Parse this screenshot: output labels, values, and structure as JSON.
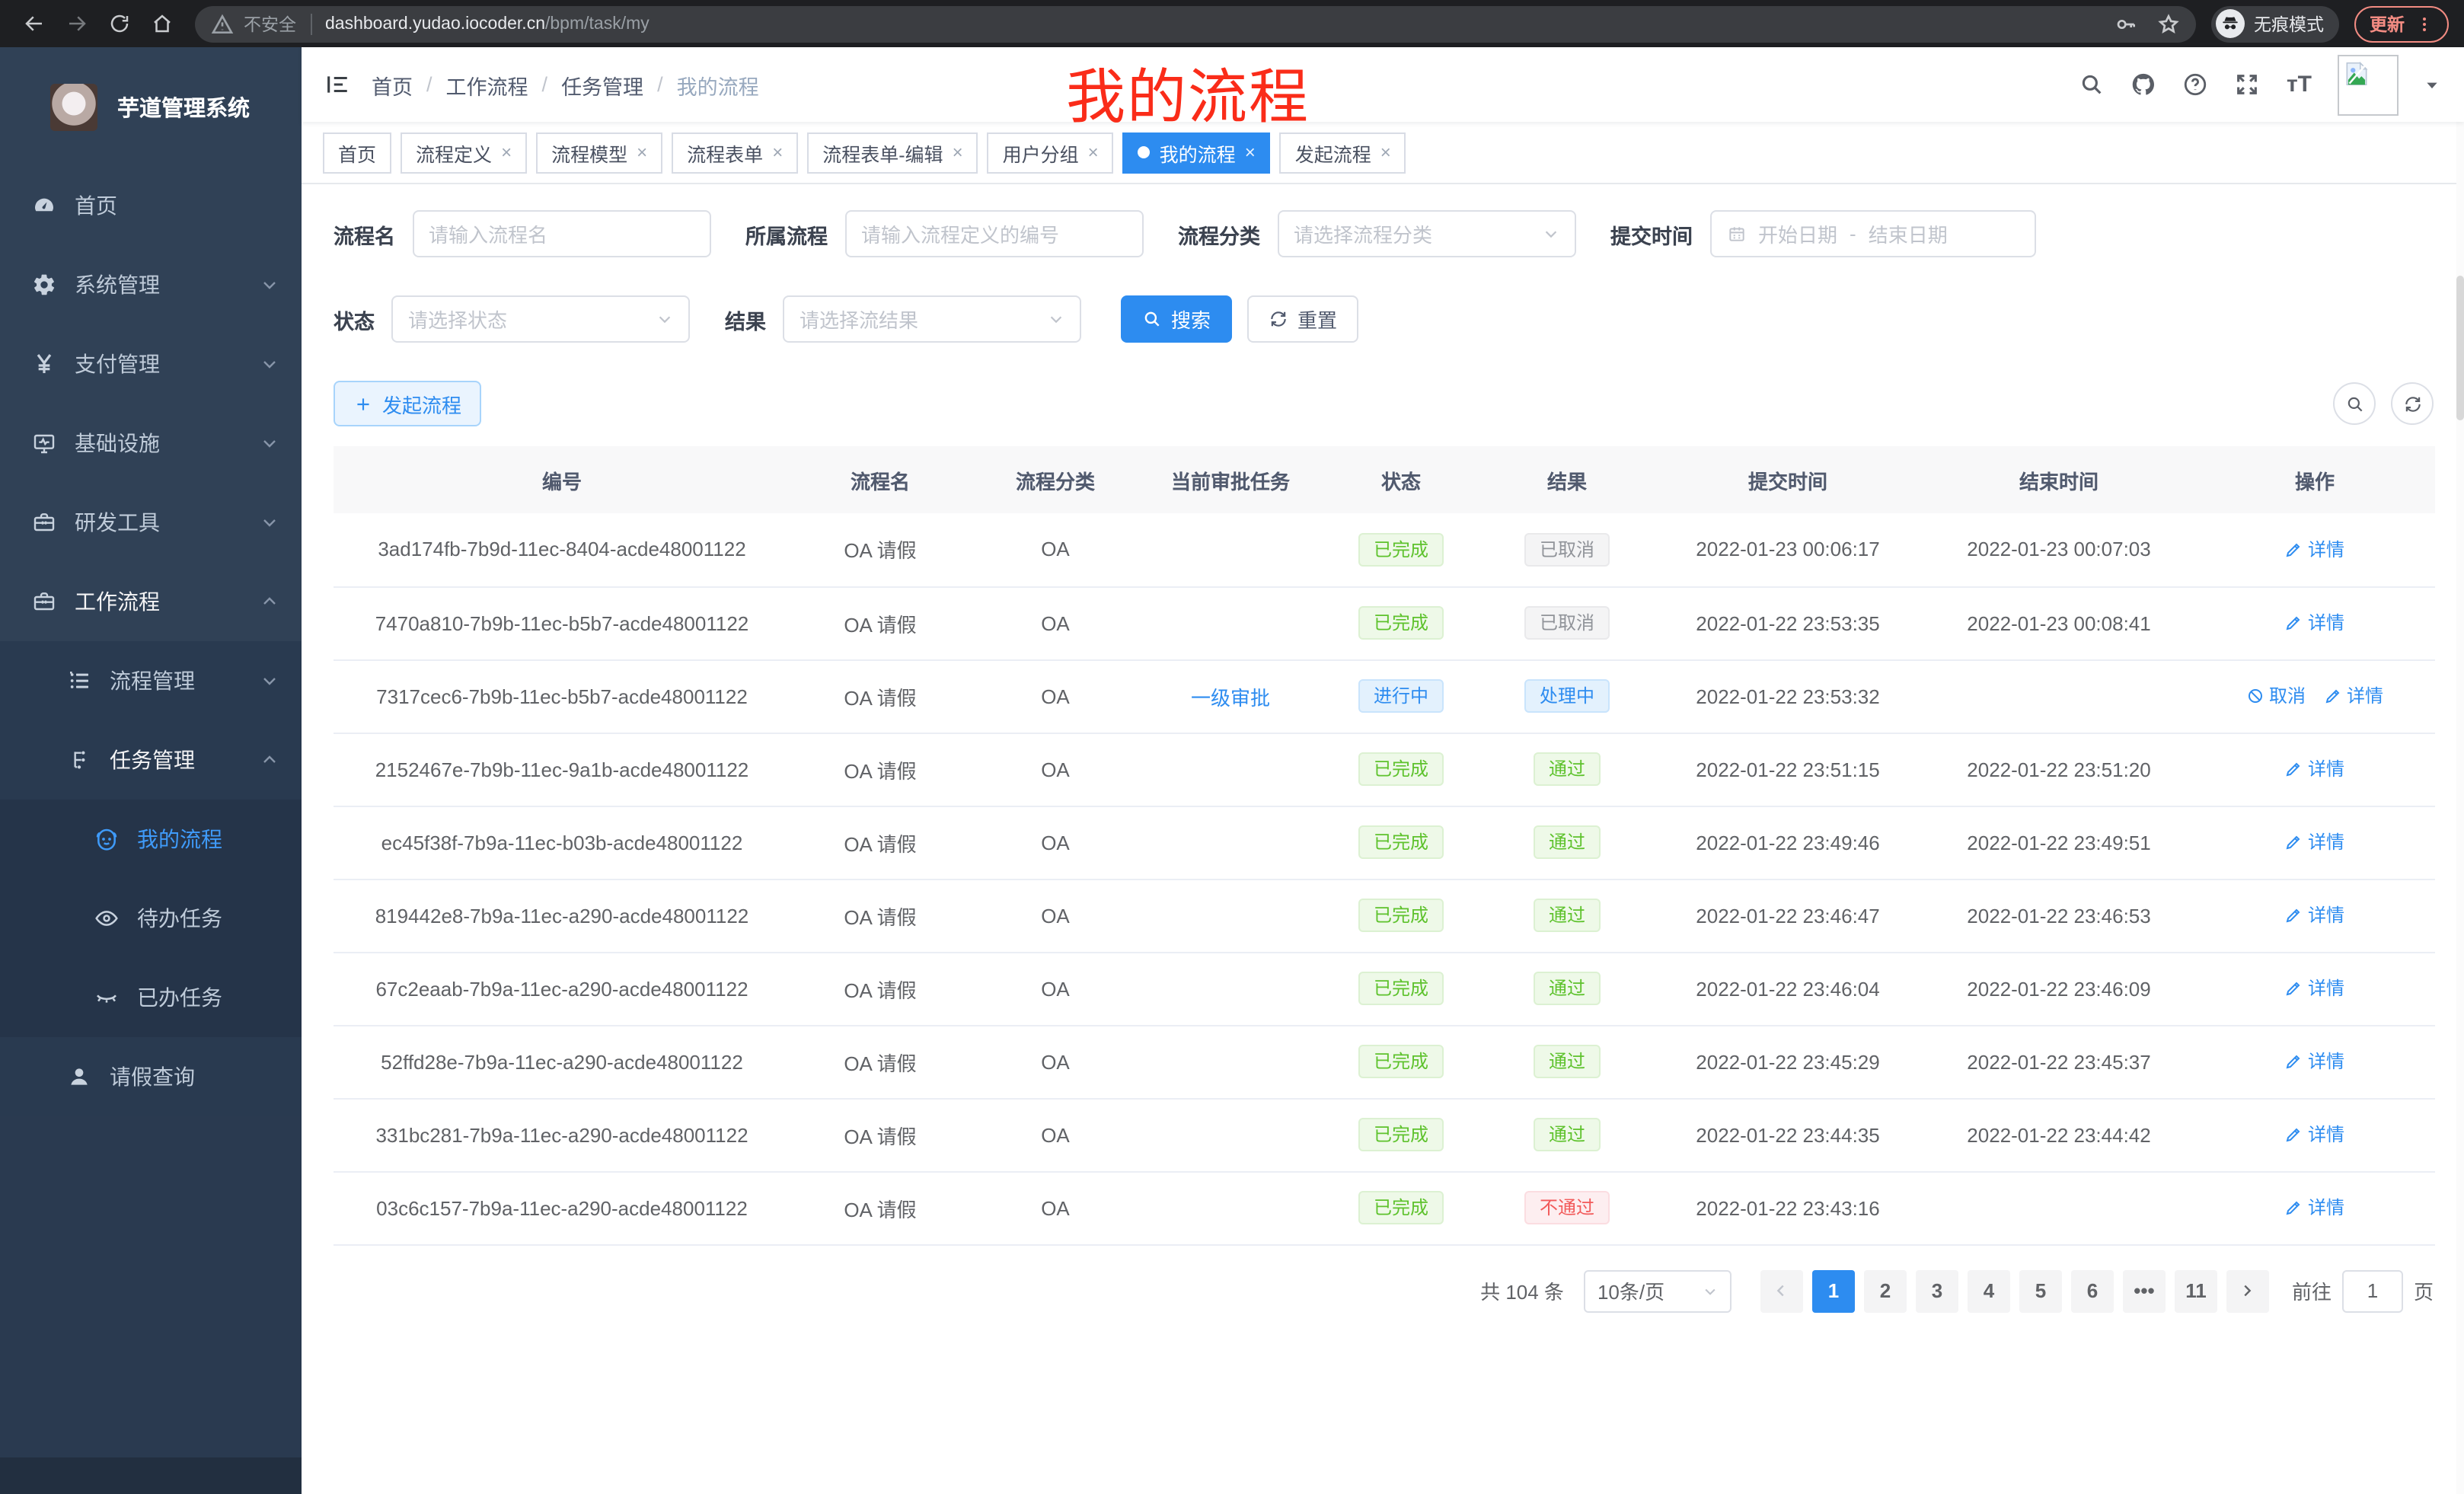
{
  "browser": {
    "security_label": "不安全",
    "url_host": "dashboard.yudao.iocoder.cn",
    "url_path": "/bpm/task/my",
    "incognito_label": "无痕模式",
    "update_label": "更新"
  },
  "sidebar": {
    "app_title": "芋道管理系统",
    "menu": [
      {
        "label": "首页",
        "icon": "dashboard-icon",
        "level": 1
      },
      {
        "label": "系统管理",
        "icon": "gear-icon",
        "level": 1,
        "chevron": "down"
      },
      {
        "label": "支付管理",
        "icon": "yen-icon",
        "level": 1,
        "chevron": "down"
      },
      {
        "label": "基础设施",
        "icon": "monitor-icon",
        "level": 1,
        "chevron": "down"
      },
      {
        "label": "研发工具",
        "icon": "toolbox-icon",
        "level": 1,
        "chevron": "down"
      },
      {
        "label": "工作流程",
        "icon": "briefcase-icon",
        "level": 1,
        "chevron": "up",
        "open": true
      },
      {
        "label": "流程管理",
        "icon": "list-icon",
        "level": 2,
        "chevron": "down"
      },
      {
        "label": "任务管理",
        "icon": "flow-icon",
        "level": 2,
        "chevron": "up",
        "open": true
      },
      {
        "label": "我的流程",
        "icon": "robot-icon",
        "level": 3,
        "active": true
      },
      {
        "label": "待办任务",
        "icon": "eye-icon",
        "level": 3
      },
      {
        "label": "已办任务",
        "icon": "eye-closed-icon",
        "level": 3
      },
      {
        "label": "请假查询",
        "icon": "user-icon",
        "level": 2
      }
    ]
  },
  "header": {
    "breadcrumb": [
      "首页",
      "工作流程",
      "任务管理",
      "我的流程"
    ],
    "annotation": "我的流程"
  },
  "tabs": [
    {
      "label": "首页",
      "closable": false,
      "active": false
    },
    {
      "label": "流程定义",
      "closable": true,
      "active": false
    },
    {
      "label": "流程模型",
      "closable": true,
      "active": false
    },
    {
      "label": "流程表单",
      "closable": true,
      "active": false
    },
    {
      "label": "流程表单-编辑",
      "closable": true,
      "active": false
    },
    {
      "label": "用户分组",
      "closable": true,
      "active": false
    },
    {
      "label": "我的流程",
      "closable": true,
      "active": true
    },
    {
      "label": "发起流程",
      "closable": true,
      "active": false
    }
  ],
  "filters": {
    "rows": [
      [
        {
          "label": "流程名",
          "type": "input",
          "placeholder": "请输入流程名"
        },
        {
          "label": "所属流程",
          "type": "input",
          "placeholder": "请输入流程定义的编号"
        },
        {
          "label": "流程分类",
          "type": "select",
          "placeholder": "请选择流程分类"
        },
        {
          "label": "提交时间",
          "type": "daterange",
          "start_placeholder": "开始日期",
          "separator": "-",
          "end_placeholder": "结束日期"
        }
      ],
      [
        {
          "label": "状态",
          "type": "select",
          "placeholder": "请选择状态"
        },
        {
          "label": "结果",
          "type": "select",
          "placeholder": "请选择流结果"
        }
      ]
    ],
    "search_label": "搜索",
    "reset_label": "重置"
  },
  "toolbar": {
    "create_label": "发起流程"
  },
  "table": {
    "columns": [
      "编号",
      "流程名",
      "流程分类",
      "当前审批任务",
      "状态",
      "结果",
      "提交时间",
      "结束时间",
      "操作"
    ],
    "rows": [
      {
        "id": "3ad174fb-7b9d-11ec-8404-acde48001122",
        "name": "OA 请假",
        "category": "OA",
        "task": "",
        "status": "已完成",
        "status_type": "success",
        "result": "已取消",
        "result_type": "info",
        "submit_time": "2022-01-23 00:06:17",
        "end_time": "2022-01-23 00:07:03",
        "actions": [
          {
            "label": "详情",
            "icon": "edit-icon"
          }
        ]
      },
      {
        "id": "7470a810-7b9b-11ec-b5b7-acde48001122",
        "name": "OA 请假",
        "category": "OA",
        "task": "",
        "status": "已完成",
        "status_type": "success",
        "result": "已取消",
        "result_type": "info",
        "submit_time": "2022-01-22 23:53:35",
        "end_time": "2022-01-23 00:08:41",
        "actions": [
          {
            "label": "详情",
            "icon": "edit-icon"
          }
        ]
      },
      {
        "id": "7317cec6-7b9b-11ec-b5b7-acde48001122",
        "name": "OA 请假",
        "category": "OA",
        "task": "一级审批",
        "status": "进行中",
        "status_type": "primary",
        "result": "处理中",
        "result_type": "primary",
        "submit_time": "2022-01-22 23:53:32",
        "end_time": "",
        "actions": [
          {
            "label": "取消",
            "icon": "cancel-icon"
          },
          {
            "label": "详情",
            "icon": "edit-icon"
          }
        ]
      },
      {
        "id": "2152467e-7b9b-11ec-9a1b-acde48001122",
        "name": "OA 请假",
        "category": "OA",
        "task": "",
        "status": "已完成",
        "status_type": "success",
        "result": "通过",
        "result_type": "success",
        "submit_time": "2022-01-22 23:51:15",
        "end_time": "2022-01-22 23:51:20",
        "actions": [
          {
            "label": "详情",
            "icon": "edit-icon"
          }
        ]
      },
      {
        "id": "ec45f38f-7b9a-11ec-b03b-acde48001122",
        "name": "OA 请假",
        "category": "OA",
        "task": "",
        "status": "已完成",
        "status_type": "success",
        "result": "通过",
        "result_type": "success",
        "submit_time": "2022-01-22 23:49:46",
        "end_time": "2022-01-22 23:49:51",
        "actions": [
          {
            "label": "详情",
            "icon": "edit-icon"
          }
        ]
      },
      {
        "id": "819442e8-7b9a-11ec-a290-acde48001122",
        "name": "OA 请假",
        "category": "OA",
        "task": "",
        "status": "已完成",
        "status_type": "success",
        "result": "通过",
        "result_type": "success",
        "submit_time": "2022-01-22 23:46:47",
        "end_time": "2022-01-22 23:46:53",
        "actions": [
          {
            "label": "详情",
            "icon": "edit-icon"
          }
        ]
      },
      {
        "id": "67c2eaab-7b9a-11ec-a290-acde48001122",
        "name": "OA 请假",
        "category": "OA",
        "task": "",
        "status": "已完成",
        "status_type": "success",
        "result": "通过",
        "result_type": "success",
        "submit_time": "2022-01-22 23:46:04",
        "end_time": "2022-01-22 23:46:09",
        "actions": [
          {
            "label": "详情",
            "icon": "edit-icon"
          }
        ]
      },
      {
        "id": "52ffd28e-7b9a-11ec-a290-acde48001122",
        "name": "OA 请假",
        "category": "OA",
        "task": "",
        "status": "已完成",
        "status_type": "success",
        "result": "通过",
        "result_type": "success",
        "submit_time": "2022-01-22 23:45:29",
        "end_time": "2022-01-22 23:45:37",
        "actions": [
          {
            "label": "详情",
            "icon": "edit-icon"
          }
        ]
      },
      {
        "id": "331bc281-7b9a-11ec-a290-acde48001122",
        "name": "OA 请假",
        "category": "OA",
        "task": "",
        "status": "已完成",
        "status_type": "success",
        "result": "通过",
        "result_type": "success",
        "submit_time": "2022-01-22 23:44:35",
        "end_time": "2022-01-22 23:44:42",
        "actions": [
          {
            "label": "详情",
            "icon": "edit-icon"
          }
        ]
      },
      {
        "id": "03c6c157-7b9a-11ec-a290-acde48001122",
        "name": "OA 请假",
        "category": "OA",
        "task": "",
        "status": "已完成",
        "status_type": "success",
        "result": "不通过",
        "result_type": "danger",
        "submit_time": "2022-01-22 23:43:16",
        "end_time": "",
        "actions": [
          {
            "label": "详情",
            "icon": "edit-icon"
          }
        ]
      }
    ]
  },
  "pagination": {
    "total_label": "共 104 条",
    "page_size_label": "10条/页",
    "pages": [
      "1",
      "2",
      "3",
      "4",
      "5",
      "6",
      "•••",
      "11"
    ],
    "active_page": "1",
    "goto_label": "前往",
    "goto_value": "1",
    "goto_suffix": "页"
  },
  "colors": {
    "primary": "#2d8cf0",
    "sidebar_bg": "#304156",
    "annotation_red": "#fa2c19",
    "badge_success": "#5ec22d",
    "badge_info": "#909399",
    "badge_danger": "#f25a5a"
  }
}
